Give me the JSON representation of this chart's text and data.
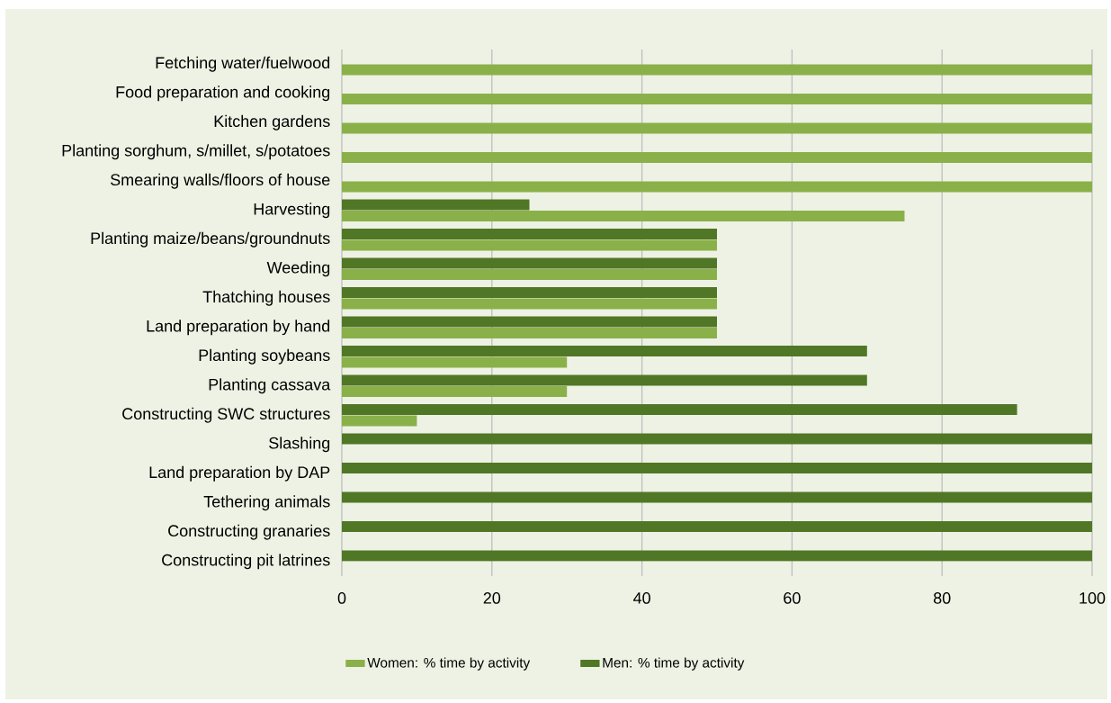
{
  "chart_data": {
    "type": "bar",
    "orientation": "horizontal",
    "categories": [
      "Fetching water/fuelwood",
      "Food preparation and cooking",
      "Kitchen gardens",
      "Planting sorghum, s/millet, s/potatoes",
      "Smearing walls/floors of house",
      "Harvesting",
      "Planting maize/beans/groundnuts",
      "Weeding",
      "Thatching houses",
      "Land preparation by hand",
      "Planting soybeans",
      "Planting cassava",
      "Constructing SWC structures",
      "Slashing",
      "Land preparation by DAP",
      "Tethering animals",
      "Constructing granaries",
      "Constructing pit latrines"
    ],
    "series": [
      {
        "name": "Women: % time by activity",
        "color": "#8ab04a",
        "values": [
          100,
          100,
          100,
          100,
          100,
          75,
          50,
          50,
          50,
          50,
          30,
          30,
          10,
          0,
          0,
          0,
          0,
          0
        ]
      },
      {
        "name": "Men: % time by activity",
        "color": "#507725",
        "values": [
          0,
          0,
          0,
          0,
          0,
          25,
          50,
          50,
          50,
          50,
          70,
          70,
          90,
          100,
          100,
          100,
          100,
          100
        ]
      }
    ],
    "xlim": [
      0,
      100
    ],
    "xticks": [
      0,
      20,
      40,
      60,
      80,
      100
    ],
    "grid": "x",
    "legend": "bottom"
  }
}
